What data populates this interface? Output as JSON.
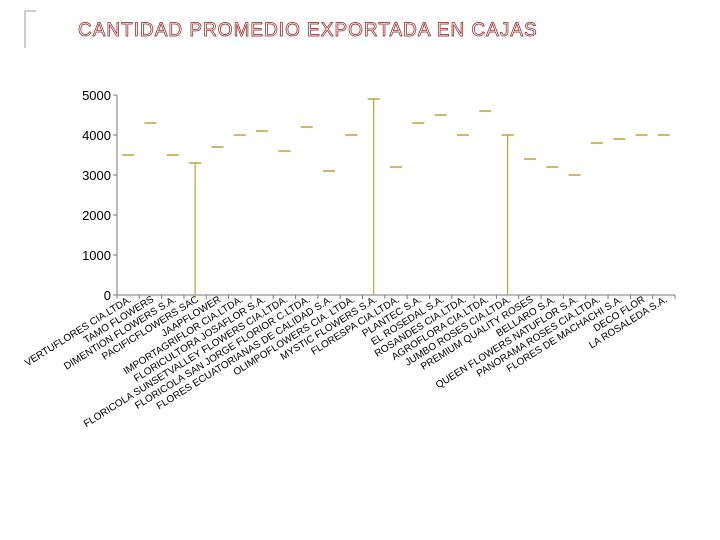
{
  "slide": {
    "title": "CANTIDAD PROMEDIO EXPORTADA EN CAJAS"
  },
  "colors": {
    "marker": "#b8a23a",
    "axis": "#7a7a7a",
    "title_outline": "#8a1a1a",
    "grid": "#a0a0a0"
  },
  "chart_data": {
    "type": "line",
    "title": "CANTIDAD PROMEDIO EXPORTADA EN CAJAS",
    "xlabel": "",
    "ylabel": "",
    "ylim": [
      0,
      5000
    ],
    "yticks": [
      0,
      1000,
      2000,
      3000,
      4000,
      5000
    ],
    "grid": false,
    "legend": "none",
    "categories": [
      "VERTUFLORES CIA.LTDA.",
      "TAMO FLOWERS",
      "DIMENTION FLOWERS S.A.",
      "PACIFICFLOWERS SAC",
      "JAAPFLOWER",
      "IMPORTAGRIFLOR CIA.LTDA.",
      "FLORICULTORA JOSAFLOR S.A.",
      "FLORICOLA SUNSETVALLEY FLOWERS CIA.LTDA.",
      "FLORICOLA SAN JORGE FLORIOR C.LTDA.",
      "FLORES ECUATORIANAS DE CALIDAD S.A.",
      "OLIMPOFLOWERS CIA. LTDA.",
      "MYSTIC FLOWERS S.A.",
      "FLORESPA CIA.LTDA.",
      "PLANTEC S.A.",
      "EL ROSEDAL S.A.",
      "ROSANDES CIA.LTDA.",
      "AGROFLORA CIA.LTDA.",
      "JUMBO ROSES CIA.LTDA.",
      "PREMIUM QUALITY ROSES",
      "BELLARO S.A.",
      "QUEEN FLOWERS NATUFLOR S.A.",
      "PANORAMA ROSES CIA.LTDA.",
      "FLORES DE MACHACHI S.A.",
      "DECO FLOR",
      "LA ROSALEDA S.A."
    ],
    "series": [
      {
        "values": [
          3500,
          4300,
          3500,
          3300,
          3700,
          4000,
          4100,
          3600,
          4200,
          3100,
          4000,
          4900,
          3200,
          4300,
          4500,
          4000,
          4600,
          4000,
          3400,
          3200,
          3000,
          3800,
          3900,
          4000,
          4000
        ]
      }
    ],
    "drop_lines_at_index": [
      3,
      11,
      17
    ]
  }
}
